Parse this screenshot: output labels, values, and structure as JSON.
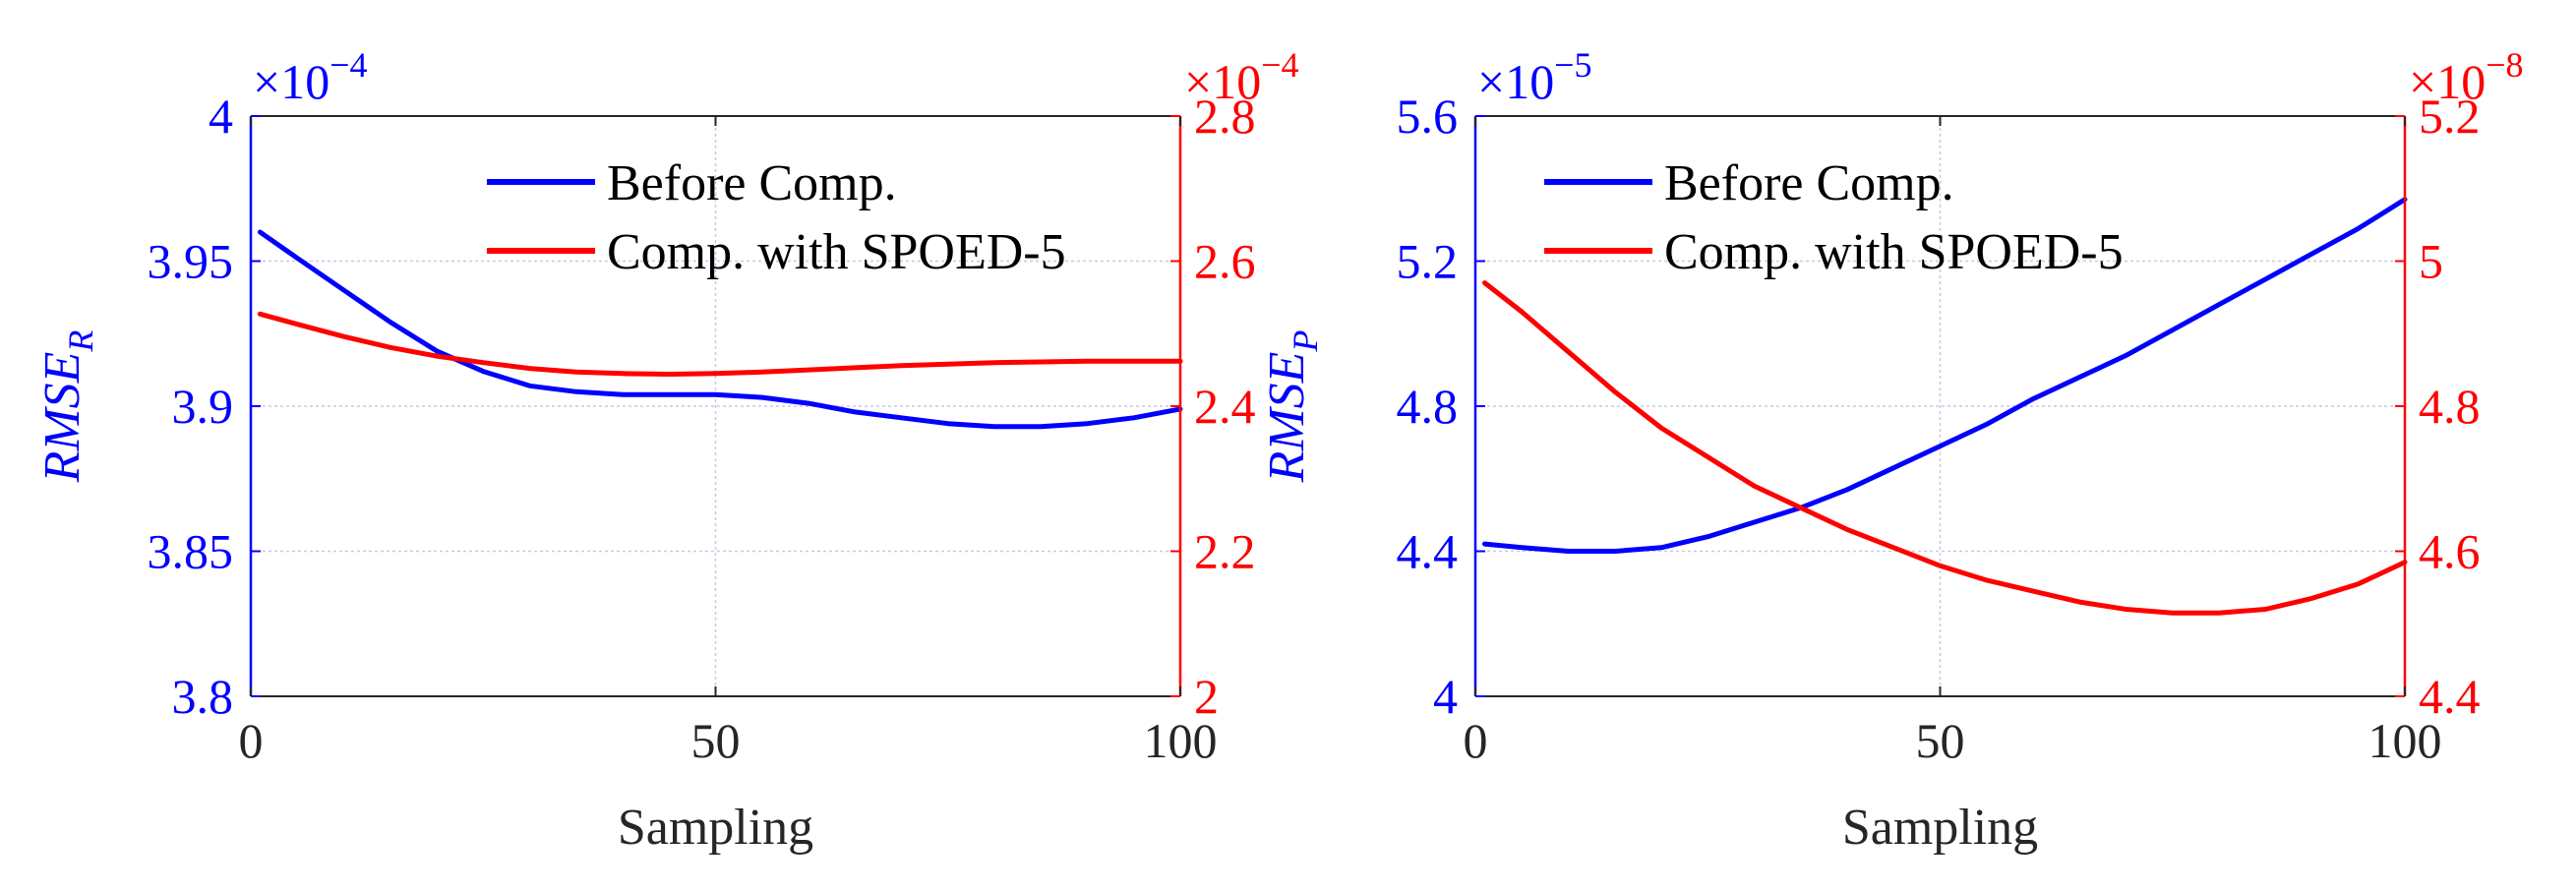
{
  "colors": {
    "blue": "#0000ff",
    "red": "#ff0000",
    "grid": "#c8c8ec",
    "axis": "#262626"
  },
  "chart_data": [
    {
      "type": "line",
      "xlabel": "Sampling",
      "xlim": [
        0,
        100
      ],
      "xticks": [
        "0",
        "50",
        "100"
      ],
      "grid": true,
      "legend_position": "top-center",
      "left_axis": {
        "label_main": "RMSE",
        "label_sub": "R",
        "multiplier_base": "×10",
        "multiplier_exp": "−4",
        "ylim": [
          3.8,
          4.0
        ],
        "ticks": [
          "3.8",
          "3.85",
          "3.9",
          "3.95",
          "4"
        ],
        "tick_values": [
          3.8,
          3.85,
          3.9,
          3.95,
          4.0
        ]
      },
      "right_axis": {
        "multiplier_base": "×10",
        "multiplier_exp": "−4",
        "ylim": [
          2.0,
          2.8
        ],
        "ticks": [
          "2",
          "2.2",
          "2.4",
          "2.6",
          "2.8"
        ],
        "tick_values": [
          2.0,
          2.2,
          2.4,
          2.6,
          2.8
        ]
      },
      "series": [
        {
          "name": "Before Comp.",
          "axis": "left",
          "color": "#0000ff",
          "x": [
            1,
            5,
            10,
            15,
            20,
            25,
            30,
            35,
            40,
            45,
            50,
            55,
            60,
            65,
            70,
            75,
            80,
            85,
            90,
            95,
            100
          ],
          "y": [
            3.96,
            3.951,
            3.94,
            3.929,
            3.919,
            3.912,
            3.907,
            3.905,
            3.904,
            3.904,
            3.904,
            3.903,
            3.901,
            3.898,
            3.896,
            3.894,
            3.893,
            3.893,
            3.894,
            3.896,
            3.899
          ]
        },
        {
          "name": "Comp. with SPOED-5",
          "axis": "right",
          "color": "#ff0000",
          "x": [
            1,
            5,
            10,
            15,
            20,
            25,
            30,
            35,
            40,
            45,
            50,
            55,
            60,
            65,
            70,
            75,
            80,
            85,
            90,
            95,
            100
          ],
          "y": [
            2.527,
            2.513,
            2.496,
            2.481,
            2.469,
            2.46,
            2.452,
            2.447,
            2.445,
            2.444,
            2.445,
            2.447,
            2.45,
            2.453,
            2.456,
            2.458,
            2.46,
            2.461,
            2.462,
            2.462,
            2.462
          ]
        }
      ]
    },
    {
      "type": "line",
      "xlabel": "Sampling",
      "xlim": [
        0,
        100
      ],
      "xticks": [
        "0",
        "50",
        "100"
      ],
      "grid": true,
      "legend_position": "top-center",
      "left_axis": {
        "label_main": "RMSE",
        "label_sub": "P",
        "multiplier_base": "×10",
        "multiplier_exp": "−5",
        "ylim": [
          4.0,
          5.6
        ],
        "ticks": [
          "4",
          "4.4",
          "4.8",
          "5.2",
          "5.6"
        ],
        "tick_values": [
          4.0,
          4.4,
          4.8,
          5.2,
          5.6
        ]
      },
      "right_axis": {
        "multiplier_base": "×10",
        "multiplier_exp": "−8",
        "ylim": [
          4.4,
          5.2
        ],
        "ticks": [
          "4.4",
          "4.6",
          "4.8",
          "5",
          "5.2"
        ],
        "tick_values": [
          4.4,
          4.6,
          4.8,
          5.0,
          5.2
        ]
      },
      "series": [
        {
          "name": "Before Comp.",
          "axis": "left",
          "color": "#0000ff",
          "x": [
            1,
            5,
            10,
            15,
            20,
            25,
            30,
            35,
            40,
            45,
            50,
            55,
            60,
            65,
            70,
            75,
            80,
            85,
            90,
            95,
            100
          ],
          "y": [
            4.42,
            4.41,
            4.4,
            4.4,
            4.41,
            4.44,
            4.48,
            4.52,
            4.57,
            4.63,
            4.69,
            4.75,
            4.82,
            4.88,
            4.94,
            5.01,
            5.08,
            5.15,
            5.22,
            5.29,
            5.37
          ]
        },
        {
          "name": "Comp. with SPOED-5",
          "axis": "right",
          "color": "#ff0000",
          "x": [
            1,
            5,
            10,
            15,
            20,
            25,
            30,
            35,
            40,
            45,
            50,
            55,
            60,
            65,
            70,
            75,
            80,
            85,
            90,
            95,
            100
          ],
          "y": [
            4.97,
            4.93,
            4.875,
            4.82,
            4.77,
            4.73,
            4.69,
            4.66,
            4.63,
            4.605,
            4.58,
            4.56,
            4.545,
            4.53,
            4.52,
            4.515,
            4.515,
            4.52,
            4.535,
            4.555,
            4.585
          ]
        }
      ]
    }
  ]
}
